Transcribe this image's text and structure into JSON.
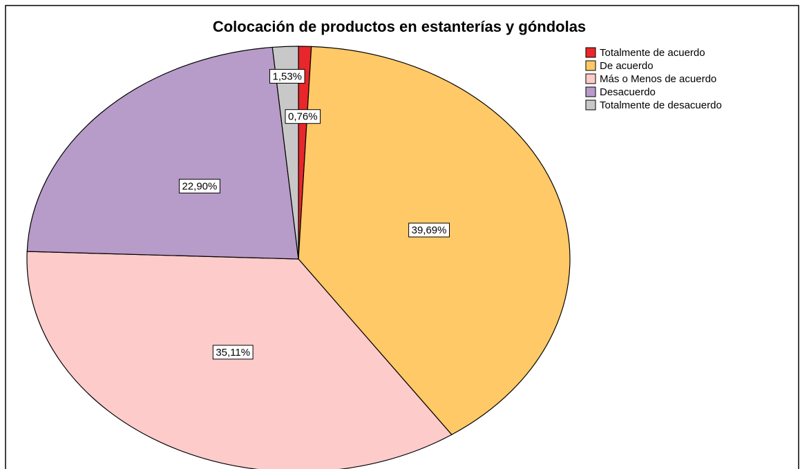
{
  "chart_data": {
    "type": "pie",
    "title": "Colocación de productos en estanterías y góndolas",
    "categories": [
      "Totalmente de acuerdo",
      "De acuerdo",
      "Más o Menos de acuerdo",
      "Desacuerdo",
      "Totalmente de desacuerdo"
    ],
    "values": [
      0.76,
      39.69,
      35.11,
      22.9,
      1.53
    ],
    "value_labels": [
      "0,76%",
      "39,69%",
      "35,11%",
      "22,90%",
      "1,53%"
    ],
    "colors": [
      "#e8262b",
      "#fec966",
      "#fecbcb",
      "#b79bc8",
      "#c8c8c8"
    ],
    "legend": "top-right"
  }
}
